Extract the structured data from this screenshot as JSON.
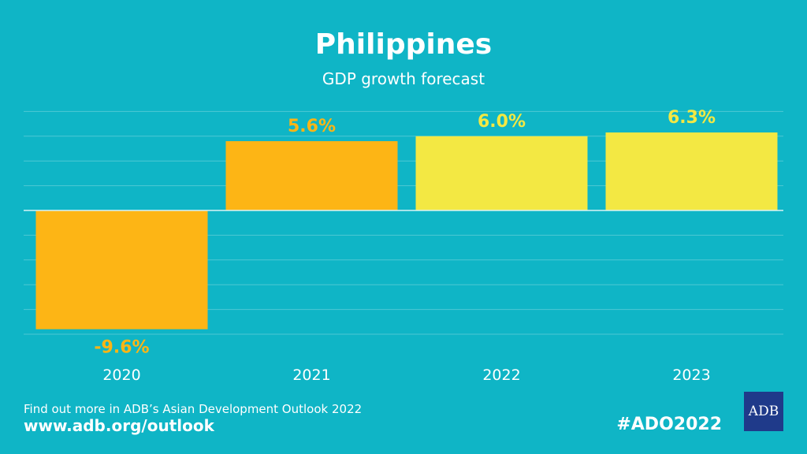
{
  "colors": {
    "background": "#0fb5c6",
    "actual": "#fdb515",
    "forecast": "#f3e843",
    "gridline": "#4ec8d4",
    "zeroline": "#d8f3f6",
    "logo_bg": "#1f3a8a"
  },
  "chart_data": {
    "type": "bar",
    "title": "Philippines",
    "subtitle": "GDP growth forecast",
    "categories": [
      "2020",
      "2021",
      "2022",
      "2023"
    ],
    "values": [
      -9.6,
      5.6,
      6.0,
      6.3
    ],
    "value_labels": [
      "-9.6%",
      "5.6%",
      "6.0%",
      "6.3%"
    ],
    "bar_kind": [
      "actual",
      "actual",
      "forecast",
      "forecast"
    ],
    "ylim": [
      -10,
      8
    ],
    "grid_step": 2,
    "xlabel": "",
    "ylabel": ""
  },
  "footer": {
    "line1": "Find out more in ADB’s Asian Development Outlook 2022",
    "url": "www.adb.org/outlook",
    "hashtag": "#ADO2022",
    "logo_text": "ADB"
  }
}
